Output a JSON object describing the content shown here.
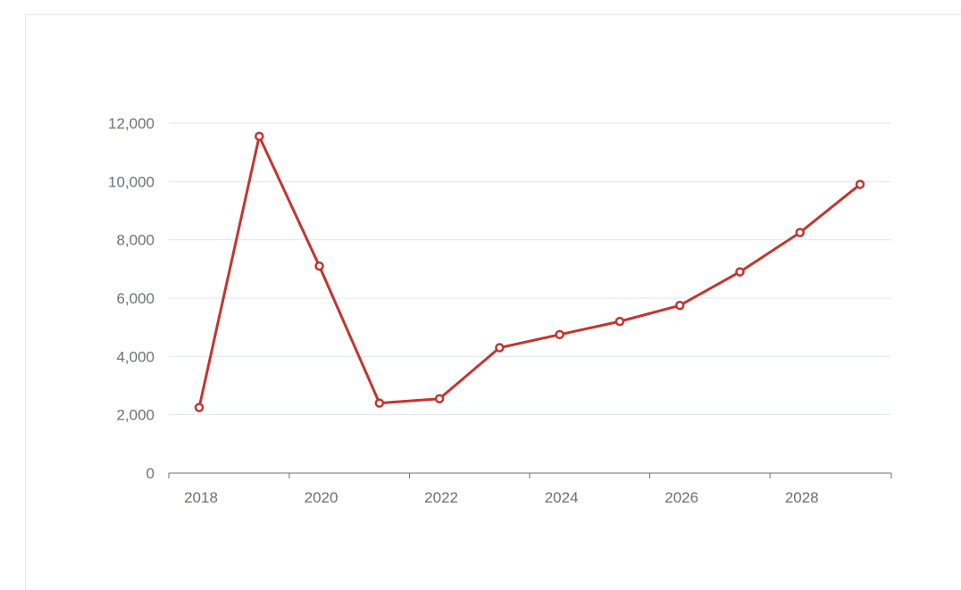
{
  "chart_data": {
    "type": "line",
    "title": "",
    "xlabel": "",
    "ylabel": "",
    "x": [
      2018,
      2019,
      2020,
      2021,
      2022,
      2023,
      2024,
      2025,
      2026,
      2027,
      2028,
      2029
    ],
    "series": [
      {
        "values": [
          2250,
          11550,
          7100,
          2400,
          2550,
          4300,
          4750,
          5200,
          5750,
          6900,
          8250,
          9900
        ]
      }
    ],
    "x_tick_labels": [
      "2018",
      "2020",
      "2022",
      "2024",
      "2026",
      "2028"
    ],
    "y_tick_labels": [
      "0",
      "2,000",
      "4,000",
      "6,000",
      "8,000",
      "10,000",
      "12,000"
    ],
    "y_ticks": [
      0,
      2000,
      4000,
      6000,
      8000,
      10000,
      12000
    ],
    "ylim": [
      0,
      12000
    ],
    "grid": true,
    "legend": "none",
    "colors": {
      "line": "#c23531",
      "grid": "#e0e6f1",
      "axis": "#6e7079",
      "marker_fill": "#ffffff"
    }
  }
}
